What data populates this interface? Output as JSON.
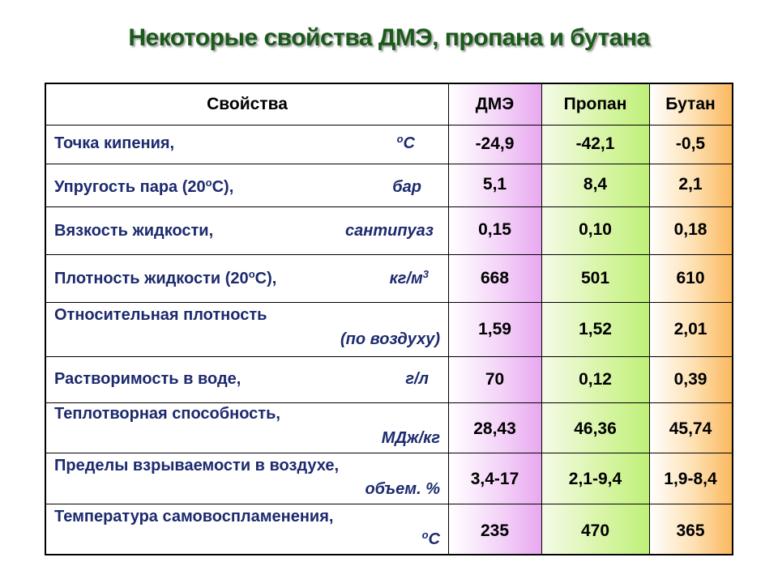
{
  "title": "Некоторые свойства ДМЭ, пропана и бутана",
  "header": {
    "property": "Свойства",
    "dme": "ДМЭ",
    "propane": "Пропан",
    "butane": "Бутан"
  },
  "rows": [
    {
      "name": "Точка кипения,",
      "unit_sup": "o",
      "unit": "C",
      "dme": "-24,9",
      "propane": "-42,1",
      "butane": "-0,5"
    },
    {
      "name": "Упругость пара (20",
      "name_sup": "o",
      "name_tail": "C),",
      "unit": "бар",
      "dme": "5,1",
      "propane": "8,4",
      "butane": "2,1"
    },
    {
      "name": "Вязкость жидкости,",
      "unit": "сантипуаз",
      "dme": "0,15",
      "propane": "0,10",
      "butane": "0,18"
    },
    {
      "name": "Плотность жидкости (20",
      "name_sup": "o",
      "name_tail": "C),",
      "unit": "кг/м",
      "unit_tail_sup": "3",
      "dme": "668",
      "propane": "501",
      "butane": "610"
    },
    {
      "name": "Относительная плотность",
      "unit": "(по воздуху)",
      "dme": "1,59",
      "propane": "1,52",
      "butane": "2,01"
    },
    {
      "name": "Растворимость в воде,",
      "unit": "г/л",
      "dme": "70",
      "propane": "0,12",
      "butane": "0,39"
    },
    {
      "name": "Теплотворная способность,",
      "unit": "МДж/кг",
      "dme": "28,43",
      "propane": "46,36",
      "butane": "45,74"
    },
    {
      "name": "Пределы взрываемости в воздухе,",
      "unit": "объем. %",
      "dme": "3,4-17",
      "propane": "2,1-9,4",
      "butane": "1,9-8,4"
    },
    {
      "name": "Температура самовоспламенения,",
      "unit_sup": "o",
      "unit": "C",
      "dme": "235",
      "propane": "470",
      "butane": "365"
    }
  ]
}
